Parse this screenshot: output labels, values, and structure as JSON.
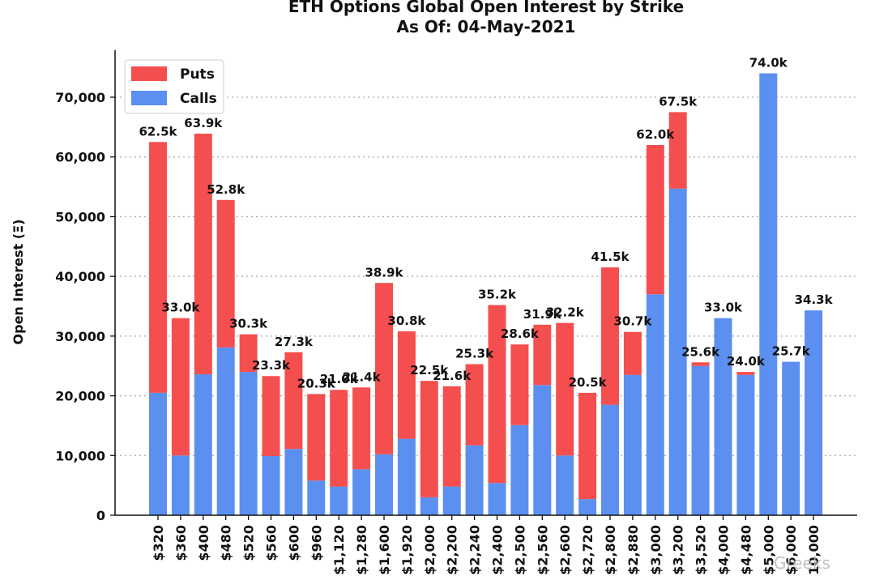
{
  "chart_data": {
    "type": "bar",
    "stacked": true,
    "title": "ETH Options Global Open Interest by Strike",
    "subtitle": "As Of: 04-May-2021",
    "xlabel": "",
    "ylabel": "Open Interest (Ξ)",
    "ylim": [
      0,
      75000
    ],
    "yticks": [
      0,
      10000,
      20000,
      30000,
      40000,
      50000,
      60000,
      70000
    ],
    "ytick_labels": [
      "0",
      "10,000",
      "20,000",
      "30,000",
      "40,000",
      "50,000",
      "60,000",
      "70,000"
    ],
    "grid": "horizontal-dotted",
    "legend_position": "top-left",
    "categories": [
      "$320",
      "$360",
      "$400",
      "$480",
      "$520",
      "$560",
      "$600",
      "$960",
      "$1,120",
      "$1,280",
      "$1,600",
      "$1,920",
      "$2,000",
      "$2,200",
      "$2,240",
      "$2,400",
      "$2,500",
      "$2,560",
      "$2,600",
      "$2,720",
      "$2,800",
      "$2,880",
      "$3,000",
      "$3,200",
      "$3,520",
      "$4,000",
      "$4,480",
      "$5,000",
      "$6,000",
      "$10,000"
    ],
    "series": [
      {
        "name": "Calls",
        "color": "#5b8ff0",
        "values": [
          20500,
          10000,
          23600,
          28100,
          24000,
          9900,
          11100,
          5800,
          4800,
          7700,
          10200,
          12800,
          3000,
          4800,
          11700,
          5400,
          15100,
          21800,
          10000,
          2700,
          18500,
          23500,
          37000,
          54700,
          25000,
          33000,
          23500,
          74000,
          25700,
          34300
        ]
      },
      {
        "name": "Puts",
        "color": "#f54e4e",
        "values": [
          42000,
          23000,
          40300,
          24700,
          6300,
          13400,
          16200,
          14500,
          16200,
          13700,
          28700,
          18000,
          19500,
          16800,
          13600,
          29800,
          13500,
          10100,
          22200,
          17800,
          23000,
          7200,
          25000,
          12800,
          600,
          0,
          500,
          0,
          0,
          0
        ]
      }
    ],
    "totals_labels": [
      "62.5k",
      "33.0k",
      "63.9k",
      "52.8k",
      "30.3k",
      "23.3k",
      "27.3k",
      "20.3k",
      "21.0k",
      "21.4k",
      "38.9k",
      "30.8k",
      "22.5k",
      "21.6k",
      "25.3k",
      "35.2k",
      "28.6k",
      "31.9k",
      "32.2k",
      "20.5k",
      "41.5k",
      "30.7k",
      "62.0k",
      "67.5k",
      "25.6k",
      "33.0k",
      "24.0k",
      "74.0k",
      "25.7k",
      "34.3k"
    ],
    "legend": [
      {
        "label": "Puts",
        "color": "#f54e4e"
      },
      {
        "label": "Calls",
        "color": "#5b8ff0"
      }
    ]
  },
  "watermark": "Greeks"
}
